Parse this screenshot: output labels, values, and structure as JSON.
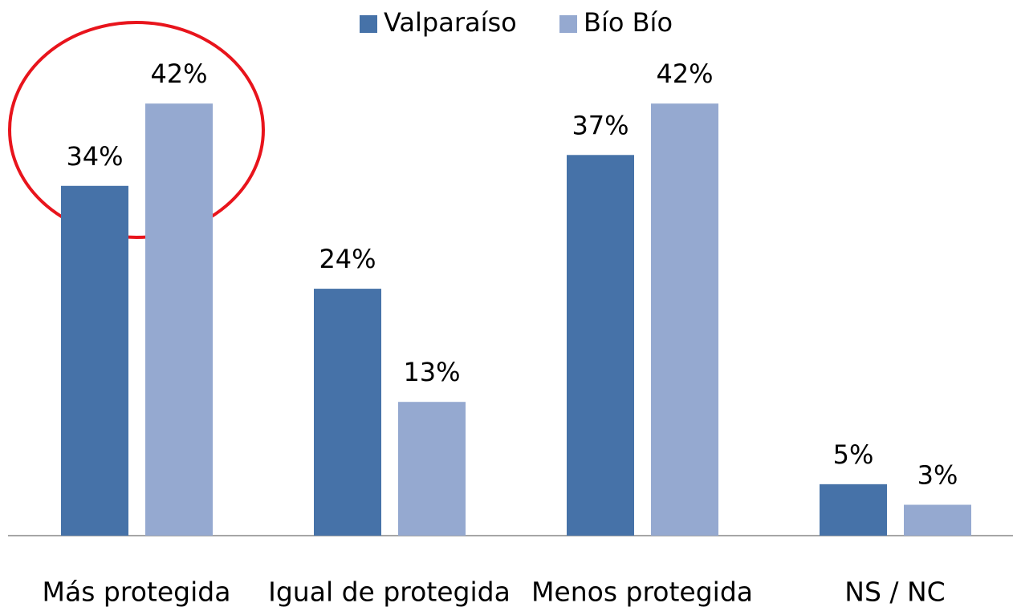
{
  "chart_data": {
    "type": "bar",
    "categories": [
      "Más protegida",
      "Igual de protegida",
      "Menos protegida",
      "NS / NC"
    ],
    "series": [
      {
        "name": "Valparaíso",
        "color": "#4672a8",
        "values": [
          34,
          24,
          37,
          5
        ],
        "value_labels": [
          "34%",
          "24%",
          "37%",
          "5%"
        ]
      },
      {
        "name": "Bío Bío",
        "color": "#95a9d0",
        "values": [
          42,
          13,
          42,
          3
        ],
        "value_labels": [
          "42%",
          "13%",
          "42%",
          "3%"
        ]
      }
    ],
    "legend": "top"
  }
}
